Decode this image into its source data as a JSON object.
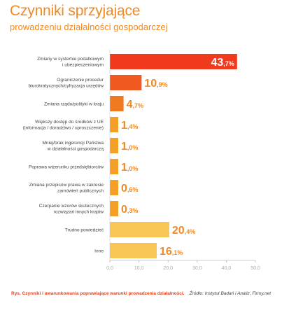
{
  "header": {
    "title": "Czynniki sprzyjające",
    "subtitle": "prowadzeniu działalności gospodarczej"
  },
  "footer": {
    "caption": "Rys. Czynniki i uwarunkowania poprawiające warunki prowadzenia działalności.",
    "source": "Źródło: Instytut Badań i Analiz, Firmy.net"
  },
  "colors": {
    "top": "#f03a1e",
    "high": "#f05a20",
    "mid": "#f07a22",
    "low": "#f4a028",
    "light": "#f9c556",
    "axis": "#aaaaaa"
  },
  "chart_data": {
    "type": "bar",
    "orientation": "horizontal",
    "categories": [
      [
        "Zmiany w systemie podatkowym",
        "i ubezpieczeniowym"
      ],
      [
        "Ograniczenie procedur",
        "biurokratycznych/cyfryzacja urzędów"
      ],
      [
        "Zmiana rządu/polityki w kraju"
      ],
      [
        "Większy dostęp do środków z UE",
        "(informacja / doradztwo / uproszczenie)"
      ],
      [
        "Mniej/brak ingerencji Państwa",
        "w działalności gospodarczą"
      ],
      [
        "Poprawa wizerunku przedsiębiorców"
      ],
      [
        "Zmiana przepisów prawa w zakresie",
        "zamówień publicznych"
      ],
      [
        "Czerpanie wzorów skutecznych",
        "rozwiązań innych krajów"
      ],
      [
        "Trudno powiedzieć"
      ],
      [
        "Inne"
      ]
    ],
    "values": [
      43.7,
      10.9,
      4.7,
      1.4,
      1.0,
      1.0,
      0.6,
      0.3,
      20.4,
      16.1
    ],
    "value_labels": [
      [
        "43",
        ",7%"
      ],
      [
        "10",
        ",9%"
      ],
      [
        "4",
        ",7%"
      ],
      [
        "1",
        ",4%"
      ],
      [
        "1",
        ",0%"
      ],
      [
        "1",
        ",0%"
      ],
      [
        "0",
        ",6%"
      ],
      [
        "0",
        ",3%"
      ],
      [
        "20",
        ",4%"
      ],
      [
        "16",
        ",1%"
      ]
    ],
    "bar_colors": [
      "#f03a1e",
      "#f05a20",
      "#f07a22",
      "#f4a028",
      "#f4a028",
      "#f4a028",
      "#f4a028",
      "#f4a028",
      "#f9c556",
      "#f9c556"
    ],
    "xlim": [
      0,
      50
    ],
    "xticks": [
      "0,0",
      "10,0",
      "20,0",
      "30,0",
      "40,0",
      "50,0"
    ],
    "grid": false
  }
}
